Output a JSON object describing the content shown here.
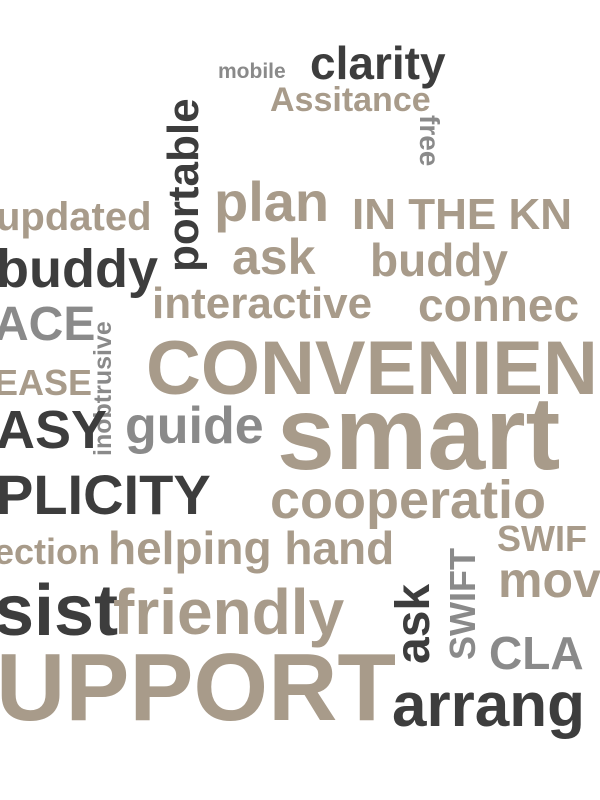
{
  "word_cloud": {
    "colors": {
      "tan": "#a89b8a",
      "dark": "#3d3d3d",
      "grey": "#8a8a8a",
      "background": "#ffffff"
    },
    "words": {
      "mobile": "mobile",
      "clarity": "clarity",
      "assitance": "Assitance",
      "free": "free",
      "portable": "portable",
      "plan": "plan",
      "in_the_know": "IN THE KN",
      "updated": "updated",
      "ask_1": "ask",
      "buddy_1": "buddy",
      "buddy_2": "buddy",
      "interactive": "interactive",
      "connect": "connec",
      "ace": "ACE",
      "inobtrusive": "inobtrusive",
      "convenience": "CONVENIEN",
      "ease": "EASE",
      "easy": "ASY",
      "guide": "guide",
      "smart": "smart",
      "simplicity": "PLICITY",
      "cooperation": "cooperatio",
      "connection": "ection",
      "helping_hand": "helping hand",
      "swift_1": "SWIF",
      "swift_2": "SWIFT",
      "move": "mov",
      "assist": "sist",
      "friendly": "friendly",
      "ask_2": "ask",
      "clarity_2": "CLA",
      "support": "UPPORT",
      "arrange": "arrang"
    }
  }
}
